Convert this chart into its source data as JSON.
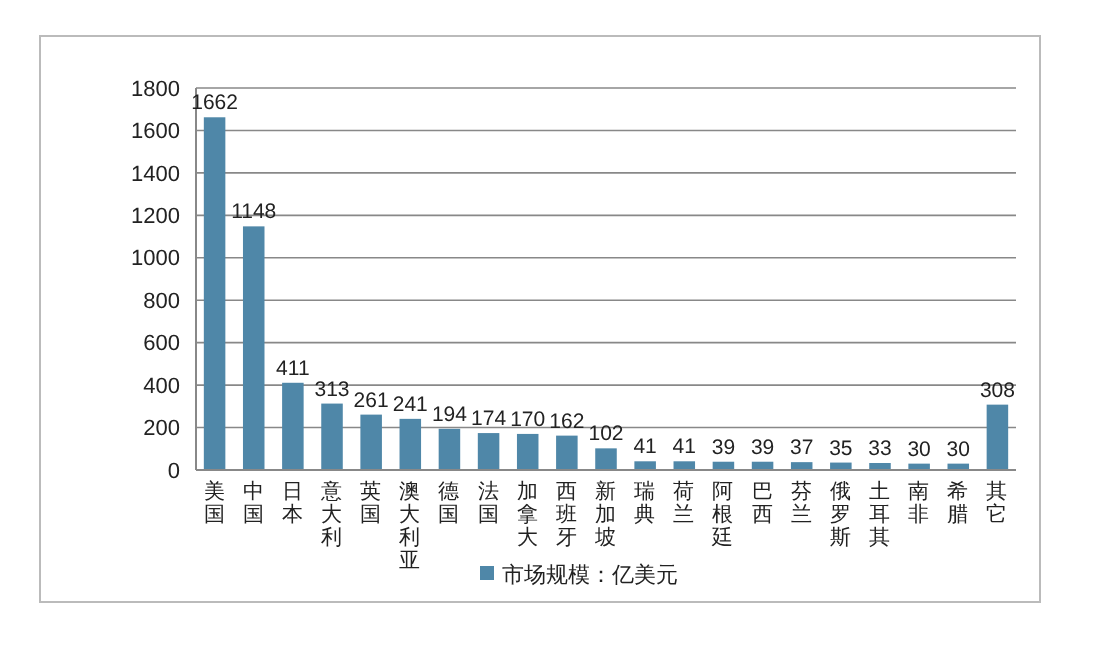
{
  "chart_data": {
    "type": "bar",
    "categories": [
      "美国",
      "中国",
      "日本",
      "意大利",
      "英国",
      "澳大利亚",
      "德国",
      "法国",
      "加拿大",
      "西班牙",
      "新加坡",
      "瑞典",
      "荷兰",
      "阿根廷",
      "巴西",
      "芬兰",
      "俄罗斯",
      "土耳其",
      "南非",
      "希腊",
      "其它"
    ],
    "series": [
      {
        "name": "市场规模：亿美元",
        "color": "#4f87a8",
        "values": [
          1662,
          1148,
          411,
          313,
          261,
          241,
          194,
          174,
          170,
          162,
          102,
          41,
          41,
          39,
          39,
          37,
          35,
          33,
          30,
          30,
          308
        ]
      }
    ],
    "ylim": [
      0,
      1800
    ],
    "yticks": [
      0,
      200,
      400,
      600,
      800,
      1000,
      1200,
      1400,
      1600,
      1800
    ],
    "grid": "y",
    "legend": "bottom",
    "data_labels": true
  }
}
